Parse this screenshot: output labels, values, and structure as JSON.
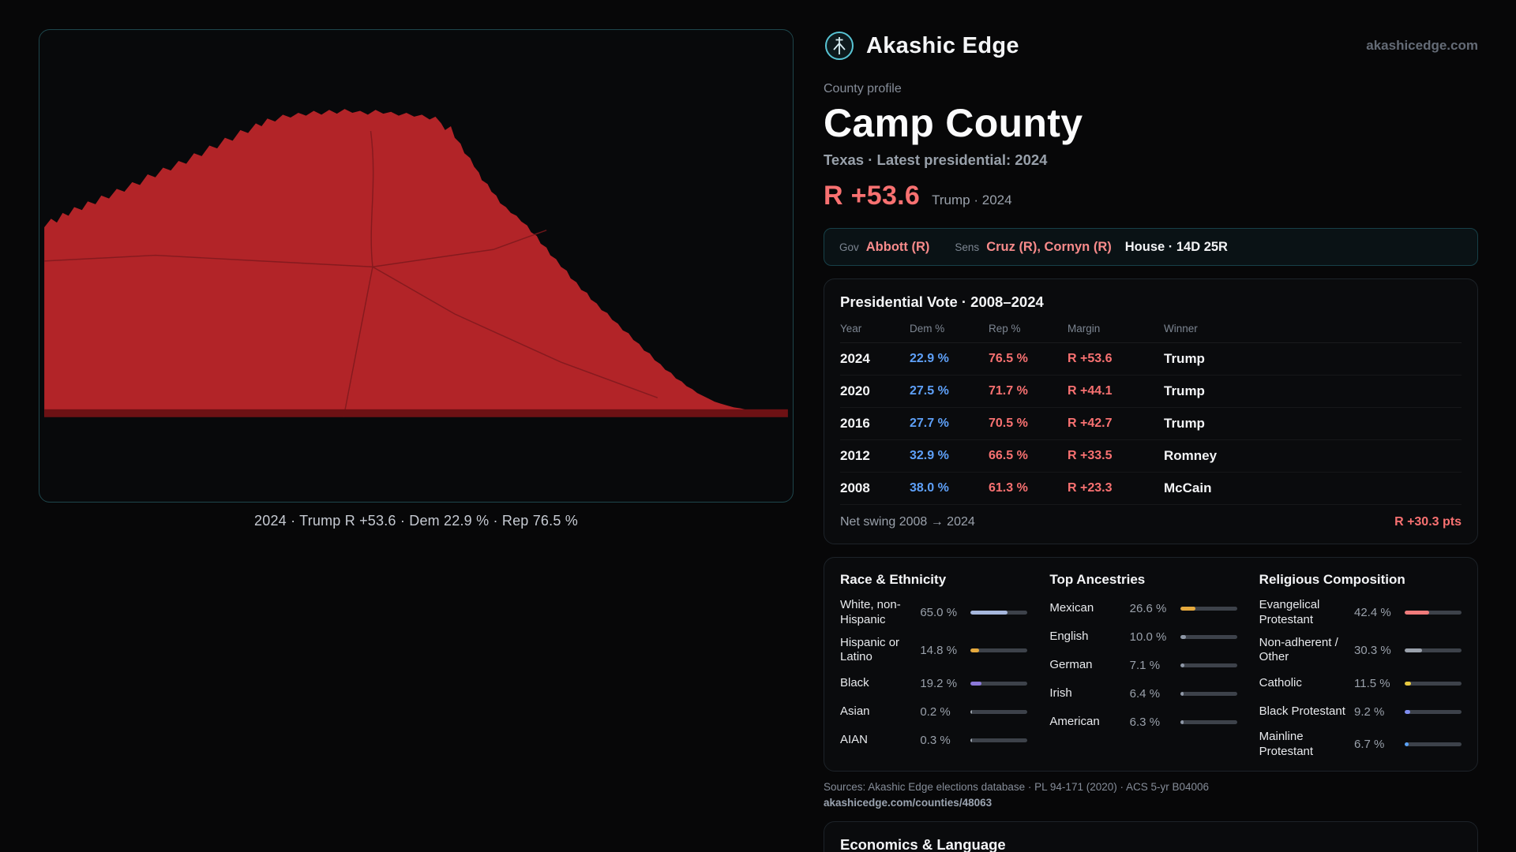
{
  "brand": {
    "name": "Akashic Edge",
    "site": "akashicedge.com"
  },
  "map": {
    "fill_color": "#b22428",
    "road_color": "#7e191d",
    "baseline_color": "#6d1114",
    "caption": "2024 · Trump R +53.6 · Dem 22.9 % · Rep 76.5 %"
  },
  "profile": {
    "eyebrow": "County profile",
    "title": "Camp County",
    "subtitle": "Texas · Latest presidential: 2024",
    "headline_margin": "R +53.6",
    "headline_context": "Trump · 2024"
  },
  "officials": {
    "gov_label": "Gov",
    "gov_value": "Abbott (R)",
    "sens_label": "Sens",
    "sens_value": "Cruz (R), Cornyn (R)",
    "house_value": "House · 14D 25R"
  },
  "presidential_vote": {
    "title": "Presidential Vote · 2008–2024",
    "columns": {
      "year": "Year",
      "dem": "Dem %",
      "rep": "Rep %",
      "margin": "Margin",
      "winner": "Winner"
    },
    "rows": [
      {
        "year": "2024",
        "dem": "22.9 %",
        "rep": "76.5 %",
        "margin": "R +53.6",
        "winner": "Trump"
      },
      {
        "year": "2020",
        "dem": "27.5 %",
        "rep": "71.7 %",
        "margin": "R +44.1",
        "winner": "Trump"
      },
      {
        "year": "2016",
        "dem": "27.7 %",
        "rep": "70.5 %",
        "margin": "R +42.7",
        "winner": "Trump"
      },
      {
        "year": "2012",
        "dem": "32.9 %",
        "rep": "66.5 %",
        "margin": "R +33.5",
        "winner": "Romney"
      },
      {
        "year": "2008",
        "dem": "38.0 %",
        "rep": "61.3 %",
        "margin": "R +23.3",
        "winner": "McCain"
      }
    ],
    "net_swing_label": "Net swing 2008 → 2024",
    "net_swing_value": "R +30.3 pts"
  },
  "demographics": {
    "race": {
      "title": "Race & Ethnicity",
      "rows": [
        {
          "label": "White, non-Hispanic",
          "value": "65.0 %",
          "pct": 65.0,
          "color": "#a6b7dd"
        },
        {
          "label": "Hispanic or Latino",
          "value": "14.8 %",
          "pct": 14.8,
          "color": "#e5a93d"
        },
        {
          "label": "Black",
          "value": "19.2 %",
          "pct": 19.2,
          "color": "#8b78d9"
        },
        {
          "label": "Asian",
          "value": "0.2 %",
          "pct": 0.2,
          "color": "#9aa1ab"
        },
        {
          "label": "AIAN",
          "value": "0.3 %",
          "pct": 0.3,
          "color": "#9aa1ab"
        }
      ]
    },
    "ancestries": {
      "title": "Top Ancestries",
      "rows": [
        {
          "label": "Mexican",
          "value": "26.6 %",
          "pct": 26.6,
          "color": "#e5a93d"
        },
        {
          "label": "English",
          "value": "10.0 %",
          "pct": 10.0,
          "color": "#8e97a6"
        },
        {
          "label": "German",
          "value": "7.1 %",
          "pct": 7.1,
          "color": "#8e97a6"
        },
        {
          "label": "Irish",
          "value": "6.4 %",
          "pct": 6.4,
          "color": "#8e97a6"
        },
        {
          "label": "American",
          "value": "6.3 %",
          "pct": 6.3,
          "color": "#8e97a6"
        }
      ]
    },
    "religion": {
      "title": "Religious Composition",
      "rows": [
        {
          "label": "Evangelical Protestant",
          "value": "42.4 %",
          "pct": 42.4,
          "color": "#f07b7b"
        },
        {
          "label": "Non-adherent / Other",
          "value": "30.3 %",
          "pct": 30.3,
          "color": "#9aa1ab"
        },
        {
          "label": "Catholic",
          "value": "11.5 %",
          "pct": 11.5,
          "color": "#e7c93f"
        },
        {
          "label": "Black Protestant",
          "value": "9.2 %",
          "pct": 9.2,
          "color": "#7f8df0"
        },
        {
          "label": "Mainline Protestant",
          "value": "6.7 %",
          "pct": 6.7,
          "color": "#5aa2f7"
        }
      ]
    }
  },
  "sources": {
    "line1": "Sources: Akashic Edge elections database · PL 94-171 (2020) · ACS 5-yr B04006",
    "line2": "akashicedge.com/counties/48063"
  },
  "economics": {
    "title": "Economics & Language"
  }
}
